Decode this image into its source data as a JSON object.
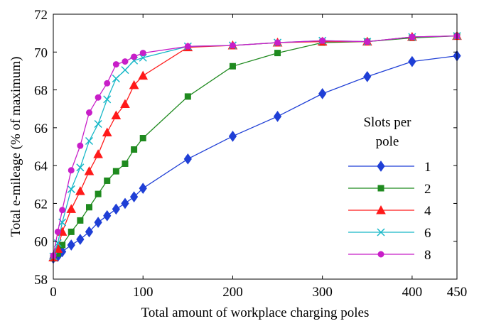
{
  "chart_data": {
    "type": "line",
    "title": "",
    "xlabel": "Total amount of workplace charging poles",
    "ylabel": "Total e-mileage (% of maximum)",
    "xlim": [
      0,
      450
    ],
    "ylim": [
      58,
      72
    ],
    "xticks": [
      0,
      100,
      200,
      300,
      400,
      450
    ],
    "yticks": [
      58,
      60,
      62,
      64,
      66,
      68,
      70,
      72
    ],
    "grid": false,
    "legend": {
      "title_line1": "Slots per",
      "title_line2": "pole",
      "placement": "right"
    },
    "series": [
      {
        "name": "1",
        "color": "#1f3fd6",
        "marker": "diamond",
        "x": [
          0,
          5,
          10,
          20,
          30,
          40,
          50,
          60,
          70,
          80,
          90,
          100,
          150,
          200,
          250,
          300,
          350,
          400,
          450
        ],
        "y": [
          59.1,
          59.2,
          59.45,
          59.8,
          60.1,
          60.5,
          61.0,
          61.35,
          61.7,
          62.0,
          62.35,
          62.8,
          64.35,
          65.55,
          66.6,
          67.8,
          68.7,
          69.5,
          69.8
        ]
      },
      {
        "name": "2",
        "color": "#1f8a1f",
        "marker": "square",
        "x": [
          0,
          5,
          10,
          20,
          30,
          40,
          50,
          60,
          70,
          80,
          90,
          100,
          150,
          200,
          250,
          300,
          350,
          400,
          450
        ],
        "y": [
          59.1,
          59.35,
          59.8,
          60.5,
          61.1,
          61.8,
          62.5,
          63.2,
          63.7,
          64.1,
          64.85,
          65.45,
          67.65,
          69.25,
          69.95,
          70.5,
          70.55,
          70.75,
          70.85
        ]
      },
      {
        "name": "4",
        "color": "#ff1a1a",
        "marker": "triangle",
        "x": [
          0,
          5,
          10,
          20,
          30,
          40,
          50,
          60,
          70,
          80,
          90,
          100,
          150,
          200,
          250,
          300,
          350,
          400,
          450
        ],
        "y": [
          59.15,
          59.6,
          60.5,
          61.7,
          62.65,
          63.7,
          64.6,
          65.75,
          66.65,
          67.25,
          68.25,
          68.75,
          70.25,
          70.35,
          70.5,
          70.55,
          70.55,
          70.8,
          70.85
        ]
      },
      {
        "name": "6",
        "color": "#18b8c8",
        "marker": "x",
        "x": [
          0,
          5,
          10,
          20,
          30,
          40,
          50,
          60,
          70,
          80,
          90,
          100,
          150,
          200,
          250,
          300,
          350,
          400,
          450
        ],
        "y": [
          59.2,
          59.9,
          61.0,
          62.75,
          63.9,
          65.3,
          66.2,
          67.5,
          68.6,
          69.05,
          69.55,
          69.7,
          70.3,
          70.35,
          70.5,
          70.6,
          70.55,
          70.8,
          70.85
        ]
      },
      {
        "name": "8",
        "color": "#c81ec8",
        "marker": "circle",
        "x": [
          0,
          5,
          10,
          20,
          30,
          40,
          50,
          60,
          70,
          80,
          90,
          100,
          150,
          200,
          250,
          300,
          350,
          400,
          450
        ],
        "y": [
          59.25,
          60.5,
          61.65,
          63.75,
          65.05,
          66.8,
          67.6,
          68.35,
          69.35,
          69.5,
          69.75,
          69.95,
          70.3,
          70.35,
          70.5,
          70.6,
          70.55,
          70.8,
          70.85
        ]
      }
    ]
  }
}
